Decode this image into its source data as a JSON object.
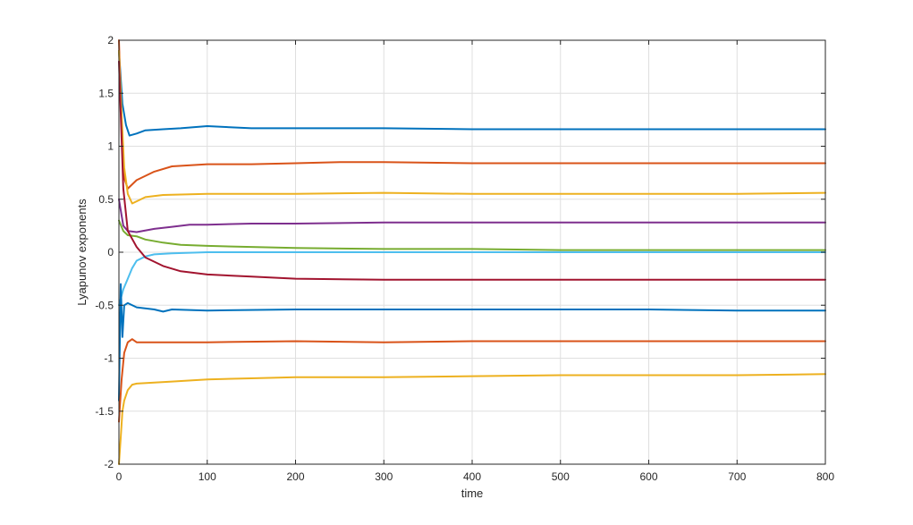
{
  "chart_data": {
    "type": "line",
    "title": "",
    "xlabel": "time",
    "ylabel": "Lyapunov exponents",
    "xlim": [
      0,
      800
    ],
    "ylim": [
      -2,
      2
    ],
    "grid": true,
    "legend": "none",
    "x_ticks": [
      {
        "value": 0,
        "label": "0"
      },
      {
        "value": 100,
        "label": "100"
      },
      {
        "value": 200,
        "label": "200"
      },
      {
        "value": 300,
        "label": "300"
      },
      {
        "value": 400,
        "label": "400"
      },
      {
        "value": 500,
        "label": "500"
      },
      {
        "value": 600,
        "label": "600"
      },
      {
        "value": 700,
        "label": "700"
      },
      {
        "value": 800,
        "label": "800"
      }
    ],
    "y_ticks": [
      {
        "value": -2,
        "label": "-2"
      },
      {
        "value": -1.5,
        "label": "-1.5"
      },
      {
        "value": -1,
        "label": "-1"
      },
      {
        "value": -0.5,
        "label": "-0.5"
      },
      {
        "value": 0,
        "label": "0"
      },
      {
        "value": 0.5,
        "label": "0.5"
      },
      {
        "value": 1,
        "label": "1"
      },
      {
        "value": 1.5,
        "label": "1.5"
      },
      {
        "value": 2,
        "label": "2"
      }
    ],
    "series": [
      {
        "color": "#0072BD",
        "x": [
          0,
          4,
          8,
          12,
          20,
          30,
          50,
          70,
          100,
          150,
          200,
          300,
          400,
          500,
          600,
          700,
          800
        ],
        "y": [
          1.9,
          1.4,
          1.2,
          1.1,
          1.12,
          1.15,
          1.16,
          1.17,
          1.19,
          1.17,
          1.17,
          1.17,
          1.16,
          1.16,
          1.16,
          1.16,
          1.16
        ]
      },
      {
        "color": "#D95319",
        "x": [
          0,
          3,
          6,
          10,
          20,
          40,
          60,
          100,
          150,
          200,
          250,
          300,
          400,
          500,
          600,
          700,
          800
        ],
        "y": [
          2.0,
          1.2,
          0.7,
          0.6,
          0.68,
          0.76,
          0.81,
          0.83,
          0.83,
          0.84,
          0.85,
          0.85,
          0.84,
          0.84,
          0.84,
          0.84,
          0.84
        ]
      },
      {
        "color": "#EDB120",
        "x": [
          0,
          3,
          6,
          10,
          15,
          20,
          30,
          50,
          100,
          200,
          300,
          400,
          500,
          600,
          700,
          800
        ],
        "y": [
          1.9,
          1.3,
          0.8,
          0.55,
          0.46,
          0.48,
          0.52,
          0.54,
          0.55,
          0.55,
          0.56,
          0.55,
          0.55,
          0.55,
          0.55,
          0.56
        ]
      },
      {
        "color": "#7E2F8E",
        "x": [
          0,
          5,
          10,
          20,
          40,
          60,
          80,
          100,
          150,
          200,
          300,
          400,
          500,
          600,
          700,
          800
        ],
        "y": [
          0.5,
          0.25,
          0.2,
          0.19,
          0.22,
          0.24,
          0.26,
          0.26,
          0.27,
          0.27,
          0.28,
          0.28,
          0.28,
          0.28,
          0.28,
          0.28
        ]
      },
      {
        "color": "#77AC30",
        "x": [
          0,
          5,
          10,
          20,
          30,
          50,
          70,
          100,
          150,
          200,
          300,
          400,
          500,
          600,
          700,
          800
        ],
        "y": [
          0.3,
          0.2,
          0.16,
          0.15,
          0.12,
          0.09,
          0.07,
          0.06,
          0.05,
          0.04,
          0.03,
          0.03,
          0.02,
          0.02,
          0.02,
          0.02
        ]
      },
      {
        "color": "#4DBEEE",
        "x": [
          0,
          5,
          10,
          15,
          20,
          30,
          40,
          60,
          100,
          200,
          300,
          400,
          500,
          600,
          700,
          800
        ],
        "y": [
          -0.5,
          -0.35,
          -0.25,
          -0.15,
          -0.08,
          -0.04,
          -0.02,
          -0.01,
          0.0,
          0.0,
          0.0,
          0.0,
          0.0,
          0.0,
          0.0,
          0.0
        ]
      },
      {
        "color": "#A2142F",
        "x": [
          0,
          5,
          10,
          20,
          30,
          50,
          70,
          100,
          150,
          200,
          300,
          400,
          500,
          600,
          700,
          800
        ],
        "y": [
          1.8,
          0.6,
          0.2,
          0.05,
          -0.05,
          -0.13,
          -0.18,
          -0.21,
          -0.23,
          -0.25,
          -0.26,
          -0.26,
          -0.26,
          -0.26,
          -0.26,
          -0.26
        ]
      },
      {
        "color": "#0072BD",
        "x": [
          0,
          2,
          4,
          6,
          10,
          20,
          40,
          50,
          60,
          100,
          200,
          300,
          400,
          500,
          600,
          700,
          800
        ],
        "y": [
          -1.4,
          -0.3,
          -0.8,
          -0.5,
          -0.48,
          -0.52,
          -0.54,
          -0.56,
          -0.54,
          -0.55,
          -0.54,
          -0.54,
          -0.54,
          -0.54,
          -0.54,
          -0.55,
          -0.55
        ]
      },
      {
        "color": "#D95319",
        "x": [
          0,
          3,
          6,
          10,
          15,
          20,
          50,
          100,
          200,
          300,
          400,
          500,
          600,
          700,
          800
        ],
        "y": [
          -1.6,
          -1.2,
          -0.95,
          -0.85,
          -0.82,
          -0.85,
          -0.85,
          -0.85,
          -0.84,
          -0.85,
          -0.84,
          -0.84,
          -0.84,
          -0.84,
          -0.84
        ]
      },
      {
        "color": "#EDB120",
        "x": [
          0,
          2,
          4,
          6,
          10,
          15,
          20,
          40,
          60,
          100,
          150,
          200,
          300,
          400,
          500,
          600,
          700,
          800
        ],
        "y": [
          -2.0,
          -1.75,
          -1.5,
          -1.4,
          -1.3,
          -1.25,
          -1.24,
          -1.23,
          -1.22,
          -1.2,
          -1.19,
          -1.18,
          -1.18,
          -1.17,
          -1.16,
          -1.16,
          -1.16,
          -1.15
        ]
      }
    ]
  }
}
